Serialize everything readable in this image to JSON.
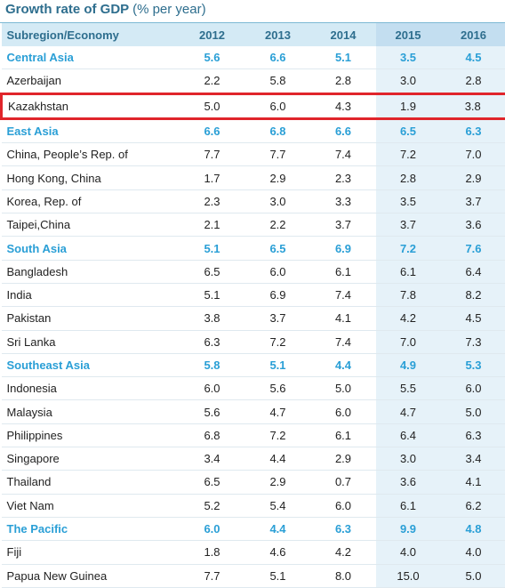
{
  "title": {
    "main": "Growth rate of GDP",
    "sub": "(% per year)"
  },
  "table": {
    "headers": [
      "Subregion/Economy",
      "2012",
      "2013",
      "2014",
      "2015",
      "2016"
    ],
    "rows": [
      {
        "name": "Central Asia",
        "group": true,
        "values": [
          "5.6",
          "6.6",
          "5.1",
          "3.5",
          "4.5"
        ]
      },
      {
        "name": "Azerbaijan",
        "group": false,
        "values": [
          "2.2",
          "5.8",
          "2.8",
          "3.0",
          "2.8"
        ]
      },
      {
        "name": "Kazakhstan",
        "group": false,
        "highlight": true,
        "values": [
          "5.0",
          "6.0",
          "4.3",
          "1.9",
          "3.8"
        ]
      },
      {
        "name": "East Asia",
        "group": true,
        "values": [
          "6.6",
          "6.8",
          "6.6",
          "6.5",
          "6.3"
        ]
      },
      {
        "name": "China, People’s Rep. of",
        "group": false,
        "values": [
          "7.7",
          "7.7",
          "7.4",
          "7.2",
          "7.0"
        ]
      },
      {
        "name": "Hong Kong, China",
        "group": false,
        "values": [
          "1.7",
          "2.9",
          "2.3",
          "2.8",
          "2.9"
        ]
      },
      {
        "name": "Korea, Rep. of",
        "group": false,
        "values": [
          "2.3",
          "3.0",
          "3.3",
          "3.5",
          "3.7"
        ]
      },
      {
        "name": "Taipei,China",
        "group": false,
        "values": [
          "2.1",
          "2.2",
          "3.7",
          "3.7",
          "3.6"
        ]
      },
      {
        "name": "South Asia",
        "group": true,
        "values": [
          "5.1",
          "6.5",
          "6.9",
          "7.2",
          "7.6"
        ]
      },
      {
        "name": "Bangladesh",
        "group": false,
        "values": [
          "6.5",
          "6.0",
          "6.1",
          "6.1",
          "6.4"
        ]
      },
      {
        "name": "India",
        "group": false,
        "values": [
          "5.1",
          "6.9",
          "7.4",
          "7.8",
          "8.2"
        ]
      },
      {
        "name": "Pakistan",
        "group": false,
        "values": [
          "3.8",
          "3.7",
          "4.1",
          "4.2",
          "4.5"
        ]
      },
      {
        "name": "Sri Lanka",
        "group": false,
        "values": [
          "6.3",
          "7.2",
          "7.4",
          "7.0",
          "7.3"
        ]
      },
      {
        "name": "Southeast Asia",
        "group": true,
        "values": [
          "5.8",
          "5.1",
          "4.4",
          "4.9",
          "5.3"
        ]
      },
      {
        "name": "Indonesia",
        "group": false,
        "values": [
          "6.0",
          "5.6",
          "5.0",
          "5.5",
          "6.0"
        ]
      },
      {
        "name": "Malaysia",
        "group": false,
        "values": [
          "5.6",
          "4.7",
          "6.0",
          "4.7",
          "5.0"
        ]
      },
      {
        "name": "Philippines",
        "group": false,
        "values": [
          "6.8",
          "7.2",
          "6.1",
          "6.4",
          "6.3"
        ]
      },
      {
        "name": "Singapore",
        "group": false,
        "values": [
          "3.4",
          "4.4",
          "2.9",
          "3.0",
          "3.4"
        ]
      },
      {
        "name": "Thailand",
        "group": false,
        "values": [
          "6.5",
          "2.9",
          "0.7",
          "3.6",
          "4.1"
        ]
      },
      {
        "name": "Viet Nam",
        "group": false,
        "values": [
          "5.2",
          "5.4",
          "6.0",
          "6.1",
          "6.2"
        ]
      },
      {
        "name": "The Pacific",
        "group": true,
        "values": [
          "6.0",
          "4.4",
          "6.3",
          "9.9",
          "4.8"
        ]
      },
      {
        "name": "Fiji",
        "group": false,
        "values": [
          "1.8",
          "4.6",
          "4.2",
          "4.0",
          "4.0"
        ]
      },
      {
        "name": "Papua New Guinea",
        "group": false,
        "values": [
          "7.7",
          "5.1",
          "8.0",
          "15.0",
          "5.0"
        ]
      }
    ]
  }
}
